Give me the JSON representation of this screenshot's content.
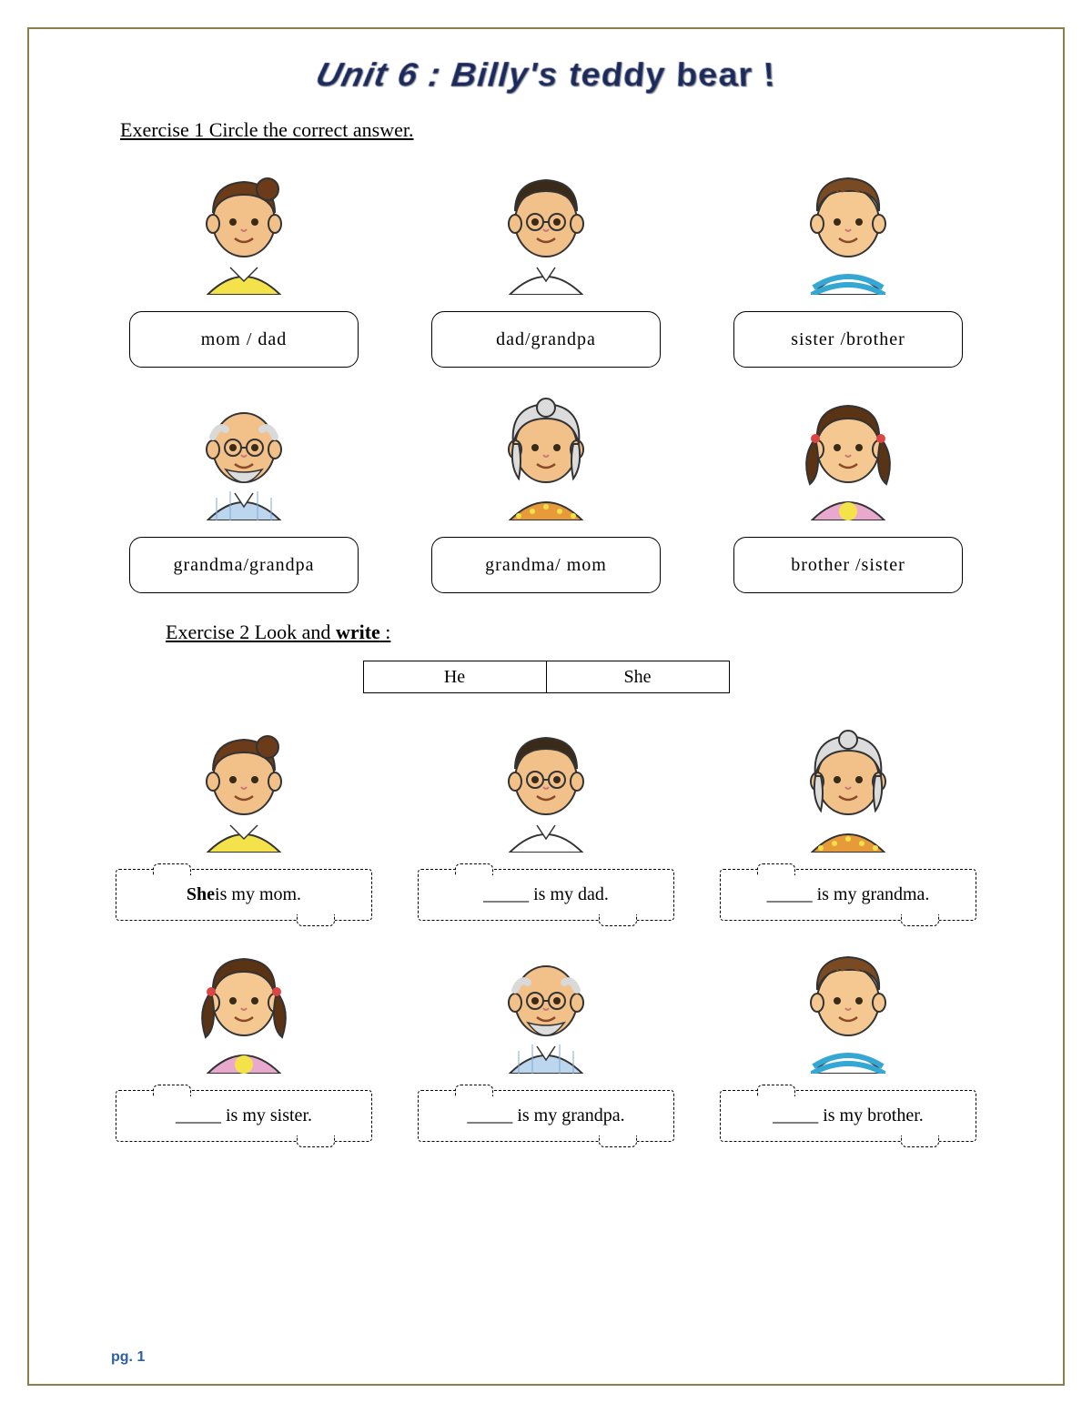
{
  "title": "Unit 6 : Billy's teddy bear !",
  "exercise1": {
    "instruction": "Exercise 1 Circle the correct answer.",
    "items": [
      {
        "person": "mom",
        "choice": "mom   / dad"
      },
      {
        "person": "dad",
        "choice": "dad/grandpa"
      },
      {
        "person": "brother",
        "choice": "sister /brother"
      },
      {
        "person": "grandpa",
        "choice": "grandma/grandpa"
      },
      {
        "person": "grandma",
        "choice": "grandma/ mom"
      },
      {
        "person": "sister",
        "choice": "brother /sister"
      }
    ]
  },
  "exercise2": {
    "instruction_pre": "Exercise 2  Look and ",
    "instruction_bold": "write",
    "instruction_post": " :",
    "pronouns": [
      "He",
      "She"
    ],
    "items": [
      {
        "person": "mom",
        "prefix_bold": "She",
        "prefix": "",
        "rest": " is my mom."
      },
      {
        "person": "dad",
        "prefix_bold": "",
        "prefix": "_____",
        "rest": " is my dad."
      },
      {
        "person": "grandma",
        "prefix_bold": "",
        "prefix": "_____",
        "rest": " is my grandma."
      },
      {
        "person": "sister",
        "prefix_bold": "",
        "prefix": "_____",
        "rest": " is my sister."
      },
      {
        "person": "grandpa",
        "prefix_bold": "",
        "prefix": "_____",
        "rest": " is my grandpa."
      },
      {
        "person": "brother",
        "prefix_bold": "",
        "prefix": "_____",
        "rest": " is my brother."
      }
    ]
  },
  "footer": "pg. 1",
  "avatars": {
    "mom": {
      "skin": "#f2c089",
      "hair": "#6b3b1a",
      "top": "#f4e24b",
      "collar": "#ffffff",
      "glasses": false,
      "hairstyle": "bun",
      "age": "adult"
    },
    "dad": {
      "skin": "#f2c089",
      "hair": "#3a2a18",
      "top": "#ffffff",
      "collar": "#ffffff",
      "glasses": true,
      "hairstyle": "short",
      "age": "adult"
    },
    "brother": {
      "skin": "#f5c892",
      "hair": "#7a4a22",
      "top": "#ffffff",
      "stripe": "#35a7d4",
      "glasses": false,
      "hairstyle": "boy",
      "age": "child"
    },
    "sister": {
      "skin": "#f5c892",
      "hair": "#5a3214",
      "top": "#e9a9cf",
      "accent": "#f4e24b",
      "glasses": false,
      "hairstyle": "pigtails",
      "age": "child"
    },
    "grandpa": {
      "skin": "#f2c089",
      "hair": "#d9d9d9",
      "top": "#bcd6ee",
      "collar": "#ffffff",
      "glasses": true,
      "hairstyle": "bald",
      "age": "old"
    },
    "grandma": {
      "skin": "#f2c089",
      "hair": "#dcdcdc",
      "top": "#e79a3a",
      "dots": "#f4e24b",
      "glasses": false,
      "hairstyle": "granny",
      "age": "old"
    }
  }
}
